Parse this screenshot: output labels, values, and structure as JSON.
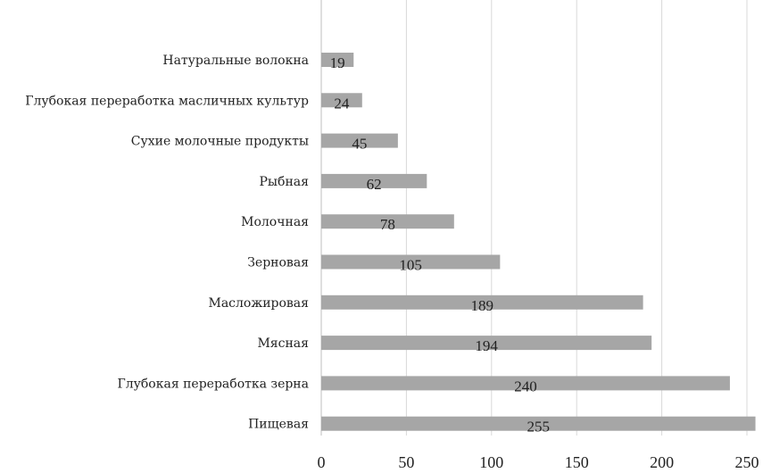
{
  "chart_data": {
    "type": "bar",
    "orientation": "horizontal",
    "categories": [
      "Натуральные волокна",
      "Глубокая переработка масличных культур",
      "Сухие молочные продукты",
      "Рыбная",
      "Молочная",
      "Зерновая",
      "Масложировая",
      "Мясная",
      "Глубокая переработка зерна",
      "Пищевая"
    ],
    "values": [
      19,
      24,
      45,
      62,
      78,
      105,
      189,
      194,
      240,
      255
    ],
    "xlim": [
      0,
      250
    ],
    "ticks": [
      0,
      50,
      100,
      150,
      200,
      250
    ],
    "grid": true,
    "legend": "none",
    "colors": {
      "bar": "#a6a6a6",
      "grid": "#d9d9d9"
    }
  }
}
